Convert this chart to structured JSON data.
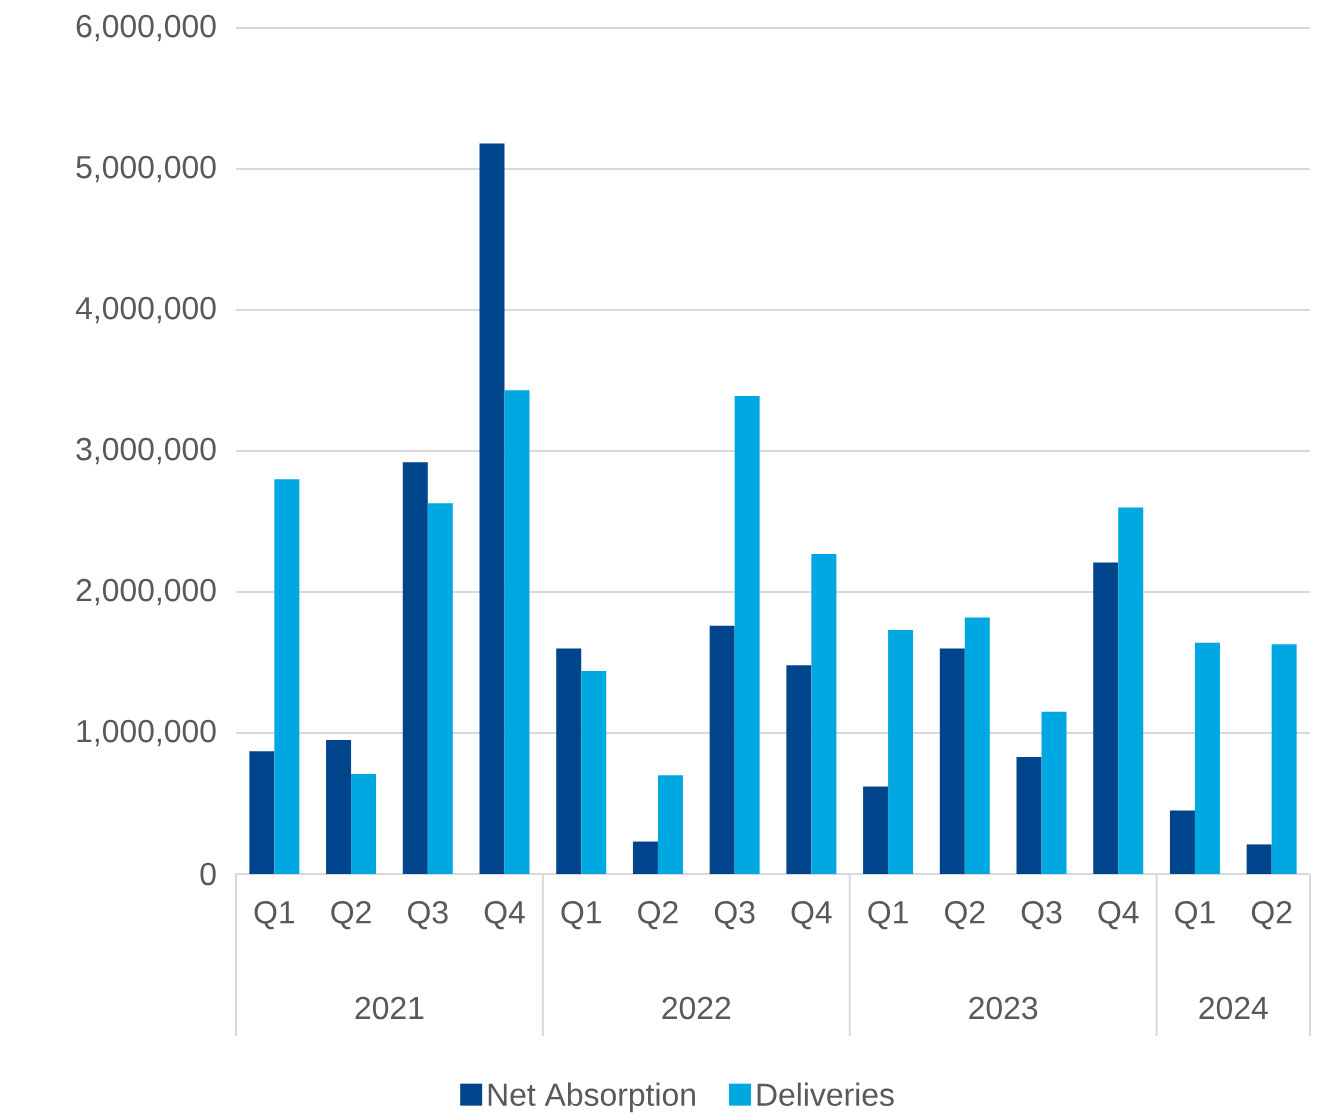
{
  "chart_data": {
    "type": "bar",
    "categories": [
      "Q1",
      "Q2",
      "Q3",
      "Q4",
      "Q1",
      "Q2",
      "Q3",
      "Q4",
      "Q1",
      "Q2",
      "Q3",
      "Q4",
      "Q1",
      "Q2"
    ],
    "annotations": [
      "2021",
      "2022",
      "2023",
      "2024"
    ],
    "series": [
      {
        "name": "Net Absorption",
        "color": "#00458b",
        "values": [
          870000,
          950000,
          2920000,
          5180000,
          1600000,
          230000,
          1760000,
          1480000,
          620000,
          1600000,
          830000,
          2210000,
          450000,
          210000
        ]
      },
      {
        "name": "Deliveries",
        "color": "#00a8e1",
        "values": [
          2800000,
          710000,
          2630000,
          3430000,
          1440000,
          700000,
          3390000,
          2270000,
          1730000,
          1820000,
          1150000,
          2600000,
          1640000,
          1630000
        ]
      }
    ],
    "ylim": [
      0,
      6000000
    ],
    "yticks": [
      0,
      {
        "value": 1000000,
        "label": "1,000,000"
      },
      {
        "value": 2000000,
        "label": "2,000,000"
      },
      {
        "value": 3000000,
        "label": "3,000,000"
      },
      {
        "value": 4000000,
        "label": "4,000,000"
      },
      {
        "value": 5000000,
        "label": "5,000,000"
      },
      {
        "value": 6000000,
        "label": "6,000,000"
      }
    ],
    "grid": "y",
    "legend": "bottom"
  }
}
